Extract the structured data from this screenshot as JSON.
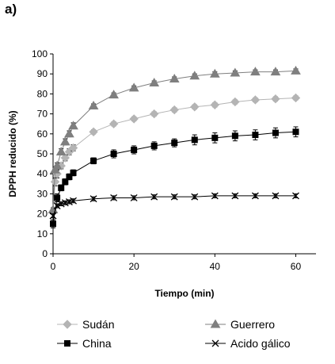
{
  "panel_label": "a)",
  "chart_data": {
    "type": "line",
    "title": "",
    "xlabel": "Tiempo (min)",
    "ylabel": "DPPH reducido (%)",
    "xlim": [
      0,
      65
    ],
    "ylim": [
      0,
      100
    ],
    "xticks": [
      0,
      20,
      40,
      60
    ],
    "yticks": [
      0,
      10,
      20,
      30,
      40,
      50,
      60,
      70,
      80,
      90,
      100
    ],
    "grid": false,
    "legend_position": "bottom",
    "series": [
      {
        "name": "Sudán",
        "marker": "diamond",
        "color": "#b4b4b4",
        "x": [
          0,
          0.5,
          1,
          2,
          3,
          4,
          5,
          10,
          15,
          20,
          25,
          30,
          35,
          40,
          45,
          50,
          55,
          60
        ],
        "y": [
          21,
          36,
          40,
          44,
          48,
          51,
          53,
          61,
          65,
          67.5,
          70,
          72,
          73.5,
          74.5,
          76,
          77,
          77.5,
          78
        ],
        "err": [
          1,
          2,
          2,
          1.5,
          1.5,
          1.5,
          1.5,
          1,
          1,
          1,
          1,
          1,
          1,
          1,
          1,
          1,
          1,
          1
        ]
      },
      {
        "name": "Guerrero",
        "marker": "triangle",
        "color": "#7f7f7f",
        "x": [
          0,
          0.5,
          1,
          2,
          3,
          4,
          5,
          10,
          15,
          20,
          25,
          30,
          35,
          40,
          45,
          50,
          55,
          60
        ],
        "y": [
          22,
          42,
          44,
          51,
          56,
          60,
          64,
          74,
          79.5,
          83,
          85.5,
          87.5,
          89,
          90,
          90.5,
          91,
          91,
          91.5
        ],
        "err": [
          1,
          1.5,
          1.5,
          1.5,
          1.5,
          1.5,
          1.5,
          1,
          1,
          1,
          1,
          1,
          1,
          1,
          1,
          1,
          1,
          1
        ]
      },
      {
        "name": "China",
        "marker": "square",
        "color": "#000000",
        "x": [
          0,
          1,
          2,
          3,
          4,
          5,
          10,
          15,
          20,
          25,
          30,
          35,
          40,
          45,
          50,
          55,
          60
        ],
        "y": [
          15,
          28,
          33,
          36,
          38.5,
          40.5,
          46.5,
          50,
          52,
          54,
          55.5,
          57,
          58,
          59,
          59.5,
          60.5,
          61
        ],
        "err": [
          2,
          2,
          1.5,
          1.5,
          1.5,
          1.5,
          1.5,
          2,
          2,
          2,
          2,
          2.5,
          2.5,
          2.5,
          2.5,
          2.5,
          2.5
        ]
      },
      {
        "name": "Acido gálico",
        "marker": "x",
        "color": "#000000",
        "x": [
          0,
          1,
          2,
          3,
          4,
          5,
          10,
          15,
          20,
          25,
          30,
          35,
          40,
          45,
          50,
          55,
          60
        ],
        "y": [
          19,
          24,
          25,
          25.5,
          26,
          26.5,
          27.5,
          28,
          28,
          28.5,
          28.5,
          28.5,
          29,
          29,
          29,
          29,
          29
        ],
        "err": [
          1,
          1,
          1,
          1,
          1,
          1,
          1,
          1,
          1,
          1,
          1,
          1,
          1,
          1,
          1,
          1,
          1
        ]
      }
    ]
  }
}
